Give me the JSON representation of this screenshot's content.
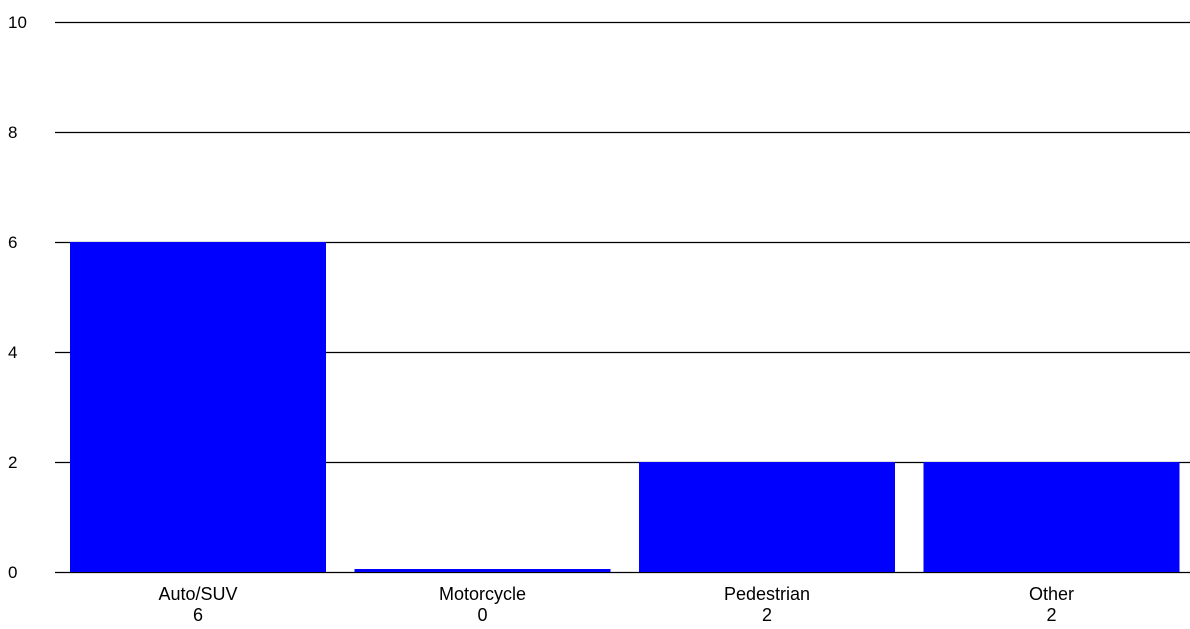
{
  "chart_data": {
    "type": "bar",
    "categories": [
      "Auto/SUV",
      "Motorcycle",
      "Pedestrian",
      "Other"
    ],
    "values": [
      6,
      0,
      2,
      2
    ],
    "value_labels": [
      "6",
      "0",
      "2",
      "2"
    ],
    "yticks": [
      0,
      2,
      4,
      6,
      8,
      10
    ],
    "ytick_labels": [
      "0",
      "2",
      "4",
      "6",
      "8",
      "10"
    ],
    "ylim": [
      0,
      10
    ],
    "grid": true,
    "legend": "none",
    "colors": {
      "bar": "#0000ff",
      "grid": "#000000",
      "background": "#ffffff"
    }
  }
}
